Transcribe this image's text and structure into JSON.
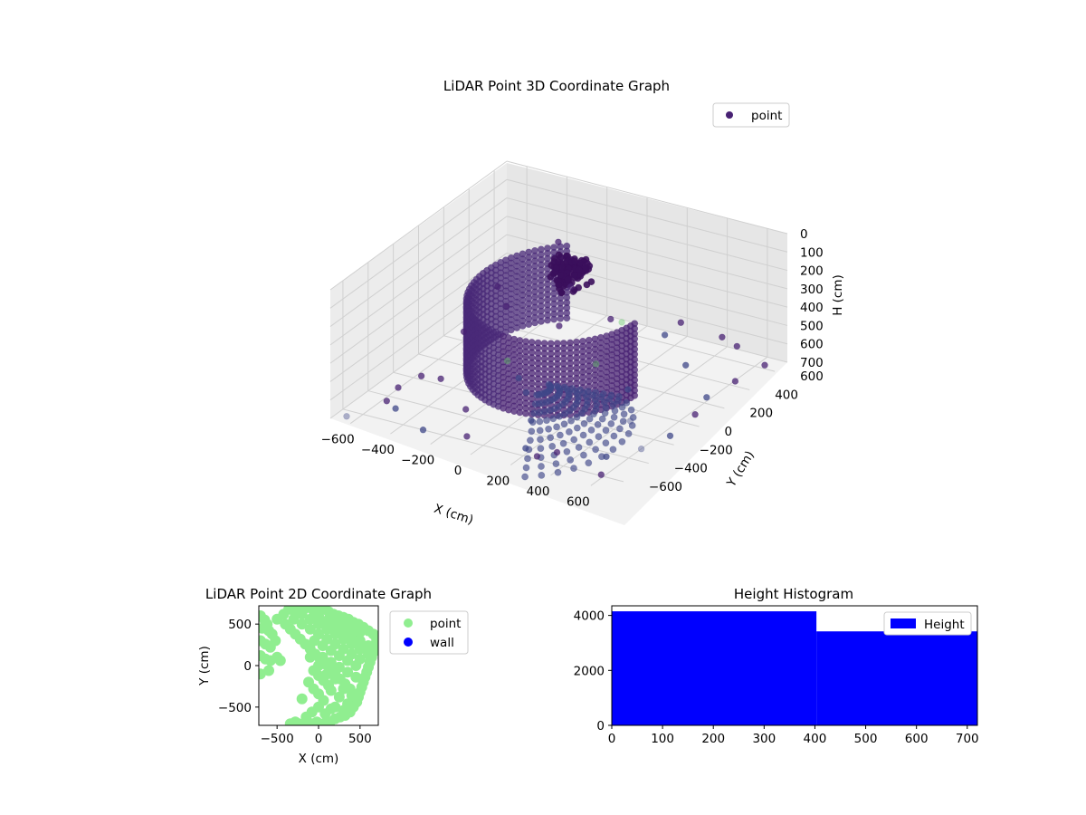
{
  "colors": {
    "point_3d": "#482173",
    "point_3d_mid": "#3f4788",
    "point_3d_far": "#3c6d8c",
    "point_3d_light": "#5ec962",
    "point_2d": "#90ee90",
    "wall_2d": "#0000ff",
    "hist": "#0000ff",
    "pane": "#f2f2f2",
    "grid": "#d0d0d0"
  },
  "chart_data": [
    {
      "type": "scatter",
      "title": "LiDAR Point 3D Coordinate Graph",
      "xlabel": "X (cm)",
      "ylabel": "Y (cm)",
      "zlabel": "H (cm)",
      "xlim": [
        -700,
        700
      ],
      "ylim": [
        -700,
        700
      ],
      "zlim": [
        0,
        700
      ],
      "z_inverted": true,
      "x_ticks": [
        "−600",
        "−400",
        "−200",
        "0",
        "200",
        "400",
        "600"
      ],
      "y_ticks": [
        "−600",
        "−400",
        "−200",
        "0",
        "200",
        "400",
        "600"
      ],
      "z_ticks": [
        "0",
        "100",
        "200",
        "300",
        "400",
        "500",
        "600",
        "700"
      ],
      "legend": {
        "entries": [
          "point"
        ],
        "placement": "top-right"
      },
      "grid": true,
      "series": [
        {
          "name": "point",
          "structures": {
            "spiral_wall": {
              "radius": 420,
              "z_top": 150,
              "z_bottom": 560,
              "angle_start_deg": 120,
              "angle_end_deg": 360
            },
            "central_cluster": {
              "x": -180,
              "y": 380,
              "z": 300
            },
            "cone_fan": {
              "x": 150,
              "y": -200,
              "z_top": 450,
              "z_bottom": 700
            }
          },
          "scattered_points": [
            [
              -650,
              -650,
              700
            ],
            [
              -600,
              200,
              650
            ],
            [
              -560,
              -200,
              680
            ],
            [
              -500,
              -500,
              690
            ],
            [
              -450,
              300,
              520
            ],
            [
              -400,
              -300,
              600
            ],
            [
              -380,
              600,
              300
            ],
            [
              -320,
              100,
              680
            ],
            [
              -300,
              -600,
              700
            ],
            [
              -250,
              400,
              620
            ],
            [
              -200,
              -420,
              650
            ],
            [
              -150,
              650,
              680
            ],
            [
              -100,
              -100,
              690
            ],
            [
              -50,
              -650,
              640
            ],
            [
              0,
              500,
              580
            ],
            [
              50,
              -300,
              700
            ],
            [
              120,
              650,
              690
            ],
            [
              180,
              -550,
              690
            ],
            [
              250,
              150,
              700
            ],
            [
              300,
              -650,
              650
            ],
            [
              350,
              450,
              690
            ],
            [
              420,
              -100,
              700
            ],
            [
              480,
              650,
              650
            ],
            [
              520,
              -450,
              690
            ],
            [
              580,
              250,
              700
            ],
            [
              620,
              -650,
              660
            ],
            [
              650,
              600,
              680
            ],
            [
              680,
              0,
              640
            ],
            [
              600,
              -300,
              700
            ],
            [
              500,
              500,
              520
            ],
            [
              -620,
              500,
              560
            ],
            [
              -550,
              -400,
              640
            ],
            [
              -450,
              -650,
              560
            ],
            [
              -350,
              650,
              560
            ],
            [
              -200,
              0,
              690
            ],
            [
              60,
              200,
              640
            ],
            [
              200,
              650,
              600
            ],
            [
              400,
              -650,
              600
            ],
            [
              650,
              -150,
              690
            ],
            [
              660,
              350,
              640
            ]
          ]
        }
      ]
    },
    {
      "type": "scatter",
      "title": "LiDAR Point 2D Coordinate Graph",
      "xlabel": "X (cm)",
      "ylabel": "Y (cm)",
      "xlim": [
        -720,
        720
      ],
      "ylim": [
        -720,
        720
      ],
      "x_ticks": [
        "−500",
        "0",
        "500"
      ],
      "y_ticks": [
        "500",
        "0",
        "−500"
      ],
      "legend": {
        "entries": [
          "point",
          "wall"
        ],
        "placement": "outside-right"
      },
      "series": [
        {
          "name": "point",
          "points": [
            [
              -700,
              600
            ],
            [
              -650,
              550
            ],
            [
              -620,
              500
            ],
            [
              -680,
              450
            ],
            [
              -600,
              420
            ],
            [
              -560,
              380
            ],
            [
              -700,
              300
            ],
            [
              -640,
              260
            ],
            [
              -580,
              220
            ],
            [
              -520,
              300
            ],
            [
              -700,
              120
            ],
            [
              -640,
              80
            ],
            [
              -580,
              60
            ],
            [
              -500,
              100
            ],
            [
              -460,
              60
            ],
            [
              -700,
              -100
            ],
            [
              -600,
              -60
            ],
            [
              -500,
              560
            ],
            [
              -420,
              620
            ],
            [
              -360,
              680
            ],
            [
              -300,
              660
            ],
            [
              -240,
              700
            ],
            [
              -180,
              680
            ],
            [
              -120,
              700
            ],
            [
              -60,
              660
            ],
            [
              0,
              700
            ],
            [
              60,
              680
            ],
            [
              120,
              650
            ],
            [
              180,
              620
            ],
            [
              240,
              600
            ],
            [
              300,
              580
            ],
            [
              360,
              560
            ],
            [
              420,
              520
            ],
            [
              480,
              500
            ],
            [
              540,
              460
            ],
            [
              600,
              420
            ],
            [
              660,
              380
            ],
            [
              700,
              300
            ],
            [
              680,
              220
            ],
            [
              660,
              160
            ],
            [
              640,
              100
            ],
            [
              620,
              40
            ],
            [
              600,
              -20
            ],
            [
              580,
              -80
            ],
            [
              560,
              -140
            ],
            [
              540,
              -200
            ],
            [
              520,
              -260
            ],
            [
              500,
              -320
            ],
            [
              480,
              -380
            ],
            [
              460,
              -440
            ],
            [
              420,
              -500
            ],
            [
              380,
              -560
            ],
            [
              320,
              -600
            ],
            [
              260,
              -620
            ],
            [
              200,
              -640
            ],
            [
              140,
              -680
            ],
            [
              60,
              -700
            ],
            [
              -20,
              -680
            ],
            [
              -80,
              -700
            ],
            [
              -160,
              -720
            ],
            [
              -240,
              -700
            ],
            [
              -400,
              500
            ],
            [
              -340,
              440
            ],
            [
              -280,
              380
            ],
            [
              -220,
              320
            ],
            [
              -160,
              260
            ],
            [
              -100,
              200
            ],
            [
              -40,
              140
            ],
            [
              20,
              80
            ],
            [
              80,
              20
            ],
            [
              140,
              -40
            ],
            [
              200,
              -100
            ],
            [
              260,
              -160
            ],
            [
              320,
              -220
            ],
            [
              380,
              -280
            ],
            [
              -300,
              560
            ],
            [
              -200,
              500
            ],
            [
              -100,
              440
            ],
            [
              0,
              380
            ],
            [
              100,
              320
            ],
            [
              200,
              260
            ],
            [
              300,
              200
            ],
            [
              400,
              140
            ],
            [
              500,
              80
            ],
            [
              -200,
              620
            ],
            [
              -100,
              560
            ],
            [
              0,
              500
            ],
            [
              100,
              440
            ],
            [
              200,
              380
            ],
            [
              300,
              320
            ],
            [
              400,
              260
            ],
            [
              500,
              200
            ],
            [
              600,
              140
            ],
            [
              0,
              600
            ],
            [
              100,
              540
            ],
            [
              200,
              480
            ],
            [
              300,
              420
            ],
            [
              400,
              360
            ],
            [
              500,
              300
            ],
            [
              600,
              240
            ],
            [
              200,
              580
            ],
            [
              300,
              520
            ],
            [
              400,
              460
            ],
            [
              500,
              400
            ],
            [
              -50,
              300
            ],
            [
              50,
              240
            ],
            [
              150,
              180
            ],
            [
              250,
              120
            ],
            [
              350,
              60
            ],
            [
              450,
              0
            ],
            [
              50,
              100
            ],
            [
              150,
              40
            ],
            [
              250,
              -20
            ],
            [
              350,
              -80
            ],
            [
              450,
              -140
            ],
            [
              100,
              -100
            ],
            [
              200,
              -160
            ],
            [
              300,
              -280
            ],
            [
              400,
              -360
            ],
            [
              150,
              -300
            ],
            [
              250,
              -380
            ],
            [
              350,
              -460
            ],
            [
              200,
              -500
            ],
            [
              300,
              -540
            ],
            [
              -100,
              100
            ],
            [
              0,
              0
            ],
            [
              -60,
              -60
            ],
            [
              0,
              -120
            ],
            [
              60,
              -180
            ],
            [
              120,
              -240
            ],
            [
              -120,
              -200
            ],
            [
              -60,
              -280
            ],
            [
              0,
              -340
            ],
            [
              60,
              -420
            ],
            [
              0,
              -500
            ],
            [
              -80,
              -560
            ],
            [
              80,
              -580
            ],
            [
              -280,
              -680
            ],
            [
              -340,
              -700
            ],
            [
              -150,
              -620
            ],
            [
              150,
              -520
            ],
            [
              -200,
              -400
            ]
          ]
        },
        {
          "name": "wall",
          "points": []
        }
      ]
    },
    {
      "type": "bar",
      "title": "Height Histogram",
      "xlabel": "",
      "ylabel": "",
      "xlim": [
        0,
        720
      ],
      "ylim": [
        0,
        4350
      ],
      "x_ticks": [
        "0",
        "100",
        "200",
        "300",
        "400",
        "500",
        "600",
        "700"
      ],
      "y_ticks": [
        "0",
        "2000",
        "4000"
      ],
      "legend": {
        "entries": [
          "Height"
        ],
        "placement": "top-right"
      },
      "series": [
        {
          "name": "Height",
          "bins": [
            {
              "start": 0,
              "end": 403,
              "count": 4150
            },
            {
              "start": 403,
              "end": 720,
              "count": 3420
            }
          ]
        }
      ]
    }
  ]
}
